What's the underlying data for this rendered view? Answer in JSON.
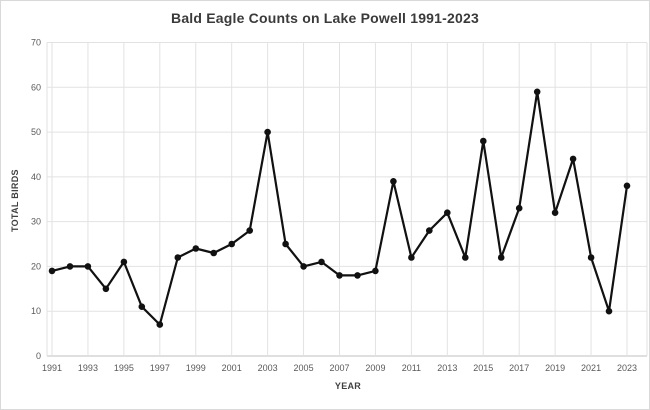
{
  "chart": {
    "title": "Bald Eagle Counts on Lake Powell 1991-2023",
    "xlabel": "YEAR",
    "ylabel": "TOTAL BIRDS"
  },
  "chart_data": {
    "type": "line",
    "title": "Bald Eagle Counts on Lake Powell 1991-2023",
    "xlabel": "YEAR",
    "ylabel": "TOTAL BIRDS",
    "x": [
      1991,
      1992,
      1993,
      1994,
      1995,
      1996,
      1997,
      1998,
      1999,
      2000,
      2001,
      2002,
      2003,
      2004,
      2005,
      2006,
      2007,
      2008,
      2009,
      2010,
      2011,
      2012,
      2013,
      2014,
      2015,
      2016,
      2017,
      2018,
      2019,
      2020,
      2021,
      2022,
      2023
    ],
    "values": [
      19,
      20,
      20,
      15,
      21,
      11,
      7,
      22,
      24,
      23,
      25,
      28,
      50,
      25,
      20,
      21,
      18,
      18,
      19,
      39,
      22,
      28,
      32,
      22,
      48,
      22,
      33,
      59,
      32,
      44,
      22,
      10,
      38
    ],
    "ylim": [
      0,
      70
    ],
    "yticks": [
      0,
      10,
      20,
      30,
      40,
      50,
      60,
      70
    ],
    "xticks": [
      1991,
      1993,
      1995,
      1997,
      1999,
      2001,
      2003,
      2005,
      2007,
      2009,
      2011,
      2013,
      2015,
      2017,
      2019,
      2021,
      2023
    ],
    "grid": true,
    "legend_position": "none",
    "colors": {
      "line": "#111111",
      "marker": "#111111",
      "grid": "#e2e2e2",
      "axis": "#bfbfbf",
      "tick_text": "#595959",
      "title_text": "#3a3a3a",
      "background": "#ffffff",
      "border": "#d9d9d9"
    }
  }
}
